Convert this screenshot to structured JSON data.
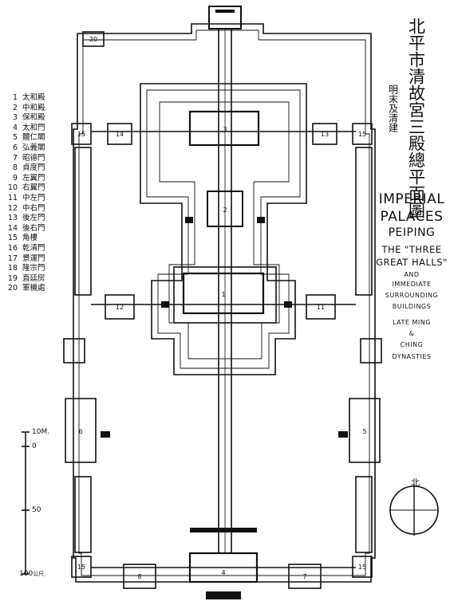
{
  "title_cn": "北平市清故宮三殿總平面圖",
  "subtitle_cn": "明末及清建",
  "english_title": {
    "line1": "IMPERIAL",
    "line2": "PALACES",
    "line3": "PEIPING",
    "line4": "THE \"THREE",
    "line5": "GREAT HALLS\"",
    "line6": "AND",
    "line7": "IMMEDIATE",
    "line8": "SURROUNDING",
    "line9": "BUILDINGS",
    "line10": "LATE MING",
    "line11": "&",
    "line12": "CHING",
    "line13": "DYNASTIES"
  },
  "legend": [
    {
      "num": "1",
      "label": "太和殿"
    },
    {
      "num": "2",
      "label": "中和殿"
    },
    {
      "num": "3",
      "label": "保和殿"
    },
    {
      "num": "4",
      "label": "太和門"
    },
    {
      "num": "5",
      "label": "體仁閣"
    },
    {
      "num": "6",
      "label": "弘義閣"
    },
    {
      "num": "7",
      "label": "昭德門"
    },
    {
      "num": "8",
      "label": "貞度門"
    },
    {
      "num": "9",
      "label": "左翼門"
    },
    {
      "num": "10",
      "label": "右翼門"
    },
    {
      "num": "11",
      "label": "中左門"
    },
    {
      "num": "12",
      "label": "中右門"
    },
    {
      "num": "13",
      "label": "後左門"
    },
    {
      "num": "14",
      "label": "後右門"
    },
    {
      "num": "15",
      "label": "角樓"
    },
    {
      "num": "16",
      "label": "乾清門"
    },
    {
      "num": "17",
      "label": "景運門"
    },
    {
      "num": "18",
      "label": "隆宗門"
    },
    {
      "num": "19",
      "label": "直廷房"
    },
    {
      "num": "20",
      "label": "軍機處"
    }
  ],
  "scale": {
    "top": "10M.",
    "zero": "0",
    "mid": "50",
    "bottom": "100",
    "unit": "公尺"
  },
  "north": "北",
  "building_numbers": {
    "b1": "1",
    "b2": "2",
    "b3": "3",
    "b4": "4",
    "b5": "5",
    "b6": "6",
    "b7": "7",
    "b8": "8",
    "b11": "11",
    "b12": "12",
    "b13": "13",
    "b14": "14",
    "b15a": "15",
    "b15b": "15",
    "b15c": "15",
    "b15d": "15",
    "b20": "20"
  }
}
